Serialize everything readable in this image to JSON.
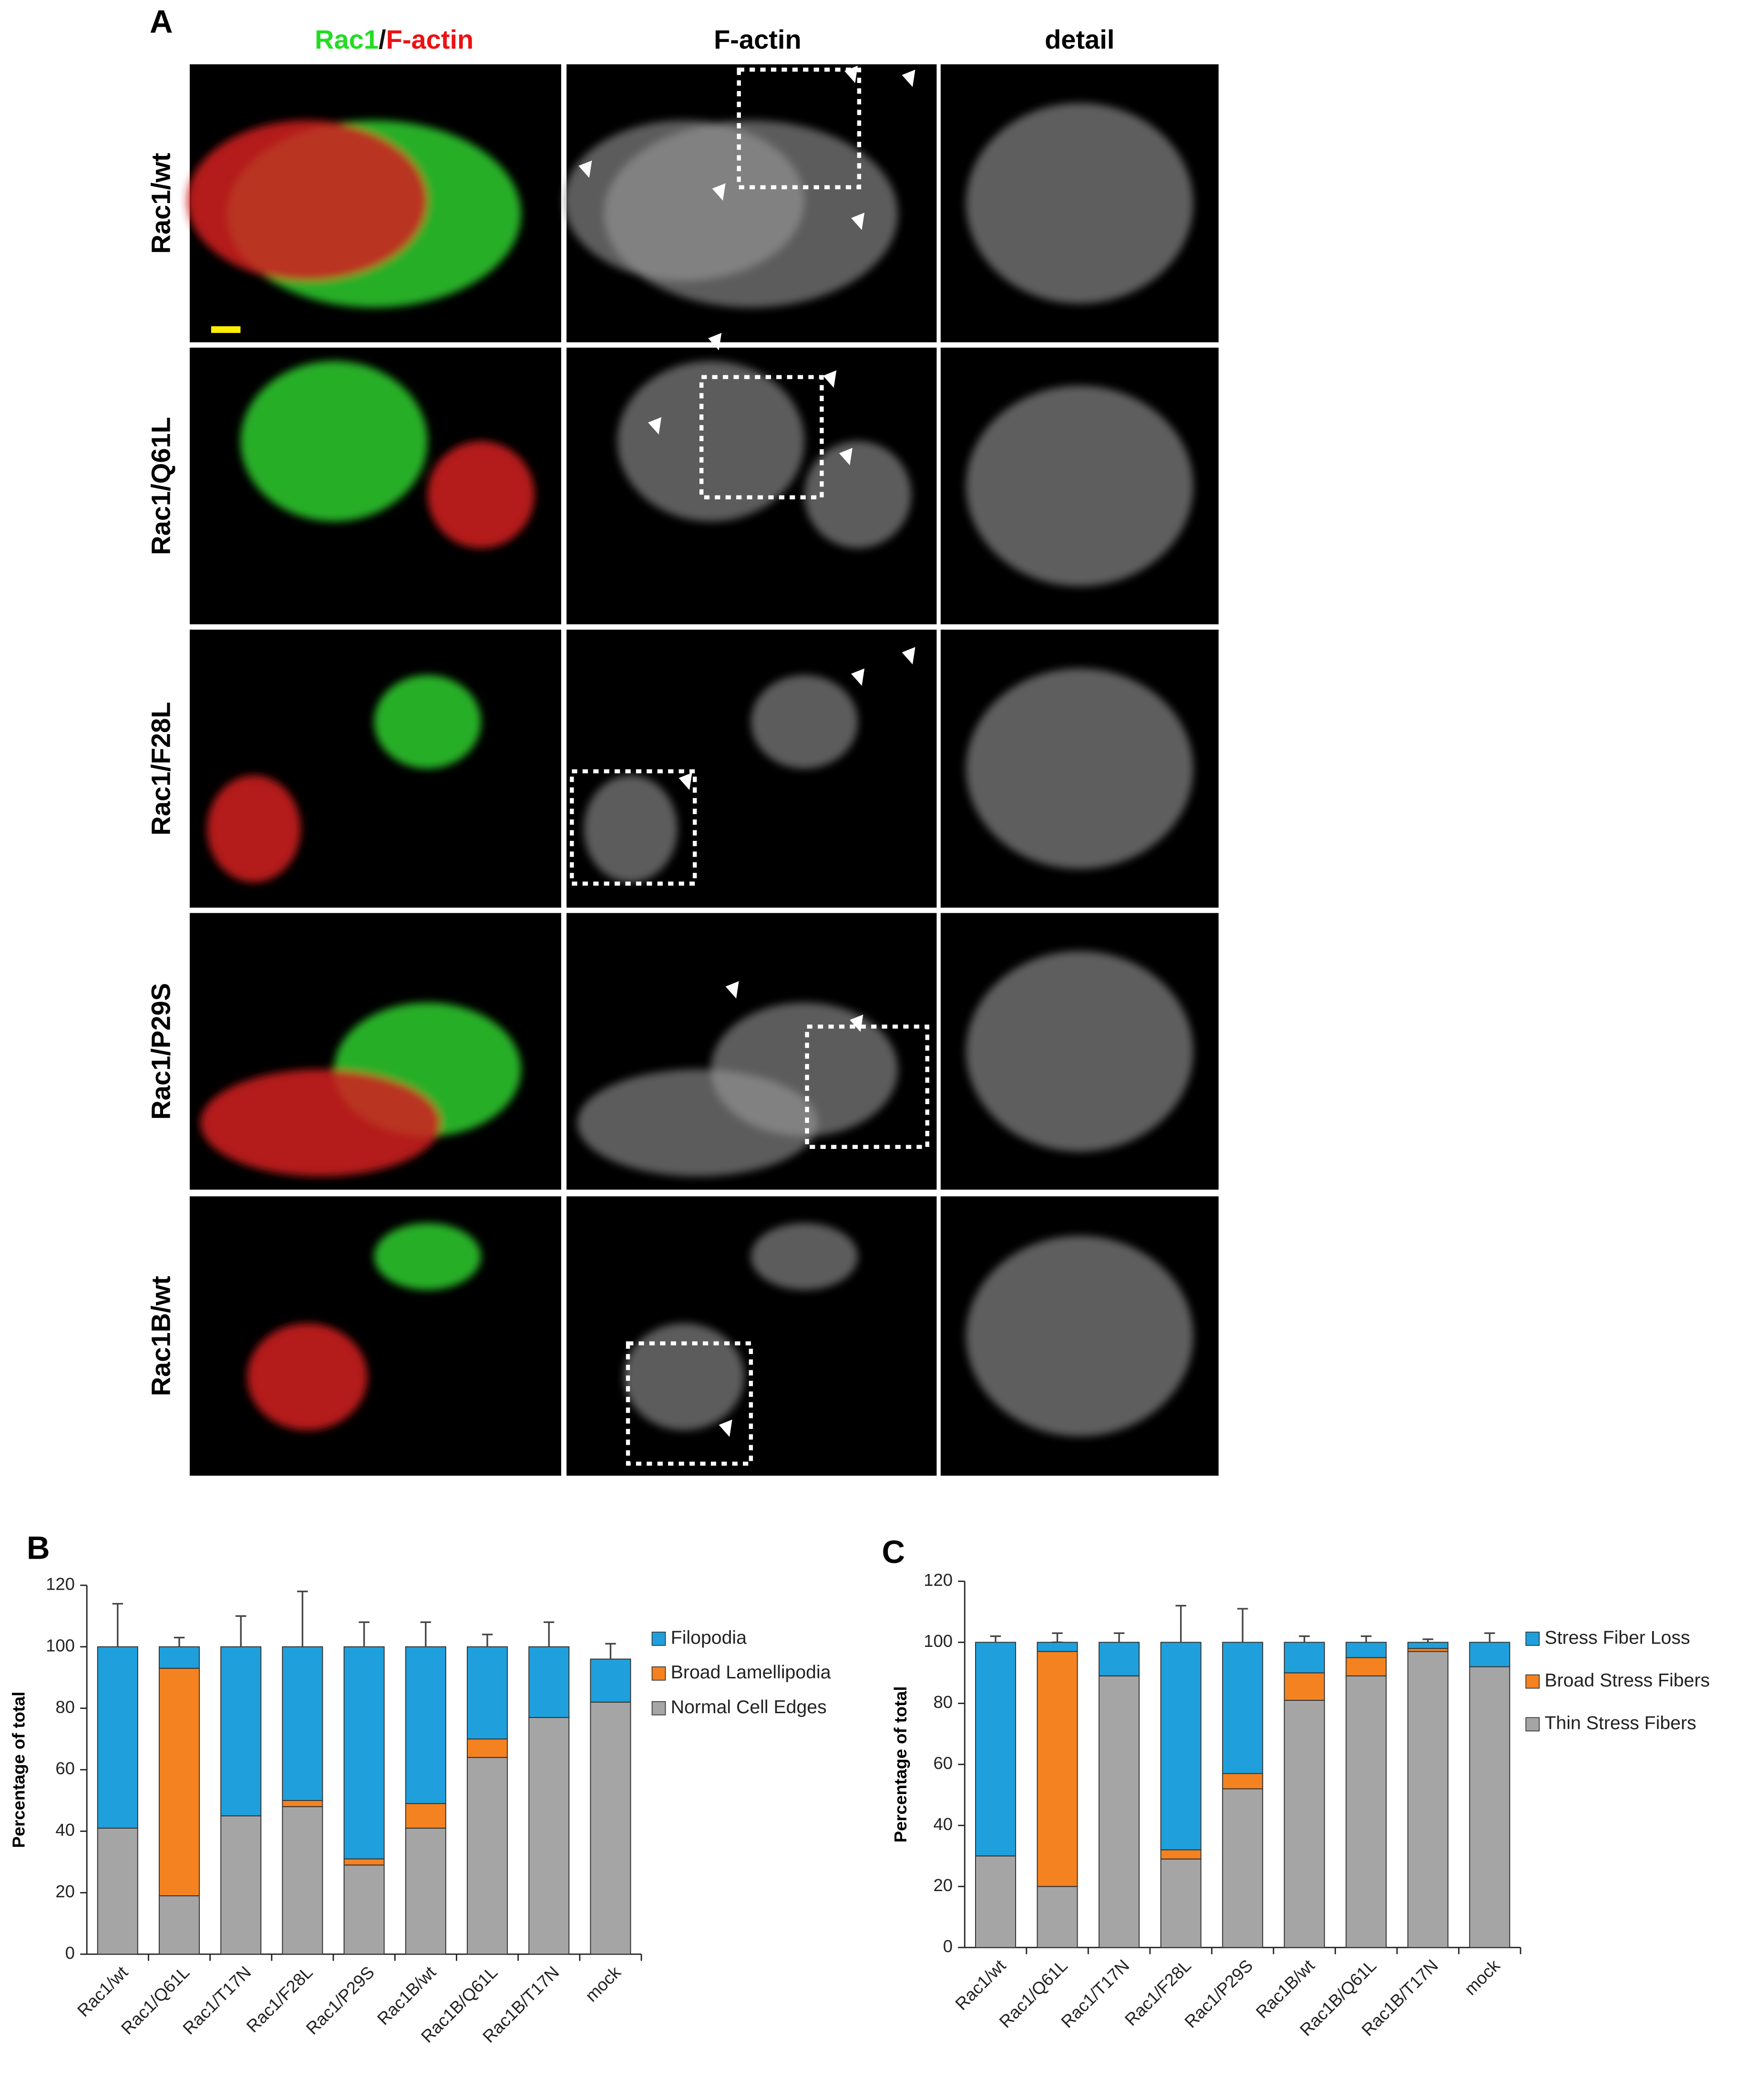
{
  "figure_a": {
    "label": "A",
    "header_merge": {
      "parts": [
        "Rac1",
        "/",
        "F-actin"
      ],
      "colors": [
        "#22dd22",
        "#111111",
        "#ee1111"
      ]
    },
    "column_headers": [
      "F-actin",
      "detail"
    ],
    "row_labels": [
      "Rac1/wt",
      "Rac1/Q61L",
      "Rac1/F28L",
      "Rac1/P29S",
      "Rac1B/wt"
    ]
  },
  "chart_data": [
    {
      "type": "stacked-bar",
      "label": "B",
      "ylabel": "Percentage of total",
      "categories": [
        "Rac1/wt",
        "Rac1/Q61L",
        "Rac1/T17N",
        "Rac1/F28L",
        "Rac1/P29S",
        "Rac1B/wt",
        "Rac1B/Q61L",
        "Rac1B/T17N",
        "mock"
      ],
      "ylim": [
        0,
        120
      ],
      "yticks": [
        0,
        20,
        40,
        60,
        80,
        100,
        120
      ],
      "series": [
        {
          "name": "Normal Cell Edges",
          "color": "#a5a5a5",
          "values": [
            41,
            19,
            45,
            48,
            29,
            41,
            64,
            77,
            82
          ],
          "errors": [
            14,
            6,
            10,
            17,
            3,
            3,
            3,
            9,
            3
          ]
        },
        {
          "name": "Broad Lamellipodia",
          "color": "#f58220",
          "values": [
            0,
            74,
            0,
            2,
            2,
            8,
            6,
            0,
            0
          ],
          "errors": [
            null,
            3,
            null,
            null,
            null,
            7,
            5,
            null,
            null
          ]
        },
        {
          "name": "Filopodia",
          "color": "#1fa0dc",
          "values": [
            59,
            7,
            55,
            50,
            69,
            51,
            30,
            23,
            14
          ],
          "errors": [
            14,
            3,
            10,
            18,
            8,
            8,
            4,
            8,
            5
          ]
        }
      ]
    },
    {
      "type": "stacked-bar",
      "label": "C",
      "ylabel": "Percentage of total",
      "categories": [
        "Rac1/wt",
        "Rac1/Q61L",
        "Rac1/T17N",
        "Rac1/F28L",
        "Rac1/P29S",
        "Rac1B/wt",
        "Rac1B/Q61L",
        "Rac1B/T17N",
        "mock"
      ],
      "ylim": [
        0,
        120
      ],
      "yticks": [
        0,
        20,
        40,
        60,
        80,
        100,
        120
      ],
      "series": [
        {
          "name": "Thin Stress Fibers",
          "color": "#a5a5a5",
          "values": [
            30,
            20,
            89,
            29,
            52,
            81,
            89,
            97,
            92
          ],
          "errors": [
            2,
            6,
            2,
            12,
            null,
            null,
            null,
            1,
            1
          ]
        },
        {
          "name": "Broad Stress Fibers",
          "color": "#f58220",
          "values": [
            0,
            77,
            0,
            3,
            5,
            9,
            6,
            1,
            0
          ],
          "errors": [
            null,
            3,
            null,
            2,
            5,
            7,
            3,
            null,
            null
          ]
        },
        {
          "name": "Stress Fiber Loss",
          "color": "#1fa0dc",
          "values": [
            70,
            3,
            11,
            68,
            43,
            10,
            5,
            2,
            8
          ],
          "errors": [
            2,
            3,
            3,
            12,
            11,
            2,
            2,
            1,
            3
          ]
        }
      ]
    }
  ]
}
